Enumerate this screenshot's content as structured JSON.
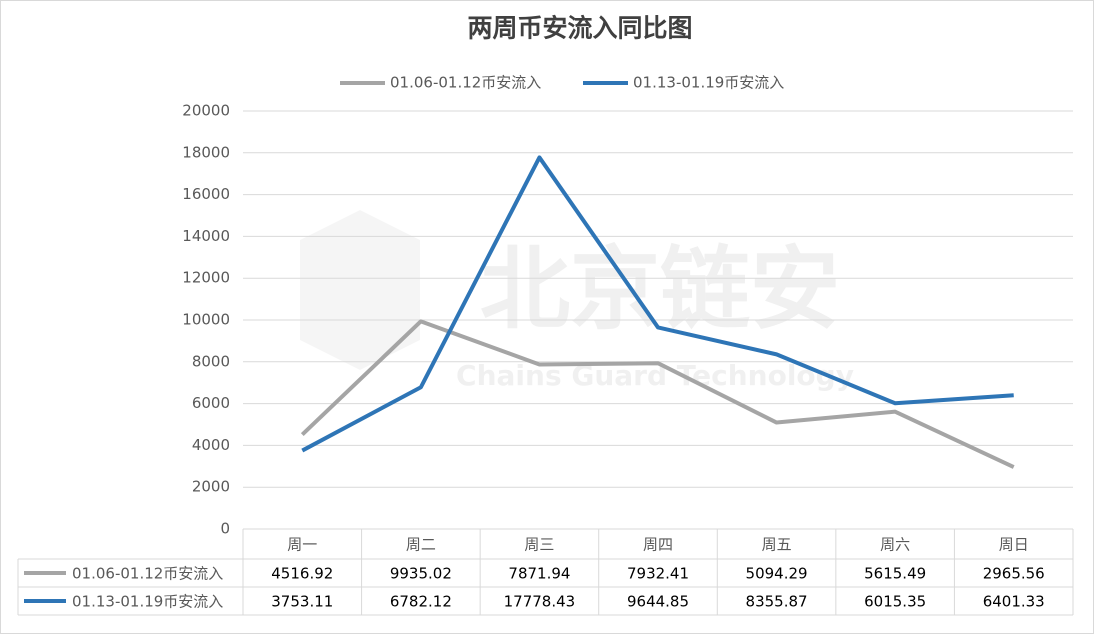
{
  "chart_data": {
    "type": "line",
    "title": "两周币安流入同比图",
    "watermark": {
      "text": "北京链安",
      "subtext": "Chains Guard Technology"
    },
    "categories": [
      "周一",
      "周二",
      "周三",
      "周四",
      "周五",
      "周六",
      "周日"
    ],
    "series": [
      {
        "name": "01.06-01.12币安流入",
        "color": "#a5a5a5",
        "values": [
          4516.92,
          9935.02,
          7871.94,
          7932.41,
          5094.29,
          5615.49,
          2965.56
        ]
      },
      {
        "name": "01.13-01.19币安流入",
        "color": "#2e75b6",
        "values": [
          3753.11,
          6782.12,
          17778.43,
          9644.85,
          8355.87,
          6015.35,
          6401.33
        ]
      }
    ],
    "ylim": [
      0,
      20000
    ],
    "yticks": [
      0,
      2000,
      4000,
      6000,
      8000,
      10000,
      12000,
      14000,
      16000,
      18000,
      20000
    ],
    "grid": true,
    "legend": "top",
    "data_table": true
  }
}
